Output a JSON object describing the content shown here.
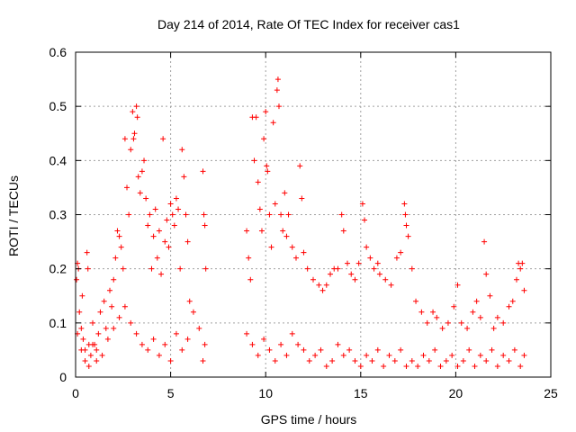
{
  "chart_data": {
    "type": "scatter",
    "title": "Day 214 of 2014, Rate Of TEC Index for receiver cas1",
    "xlabel": "GPS time / hours",
    "ylabel": "ROTI / TECUs",
    "xlim": [
      0,
      25
    ],
    "ylim": [
      0,
      0.6
    ],
    "x_ticks": [
      0,
      5,
      10,
      15,
      20,
      25
    ],
    "y_ticks": [
      0,
      0.1,
      0.2,
      0.3,
      0.4,
      0.5,
      0.6
    ],
    "x_tick_labels": [
      "0",
      "5",
      "10",
      "15",
      "20",
      "25"
    ],
    "y_tick_labels": [
      "0",
      "0.1",
      "0.2",
      "0.3",
      "0.4",
      "0.5",
      "0.6"
    ],
    "grid": true,
    "marker": "+",
    "color": "#ff0000",
    "series": [
      {
        "name": "ROTI",
        "points": [
          [
            0.05,
            0.18
          ],
          [
            0.1,
            0.21
          ],
          [
            0.15,
            0.2
          ],
          [
            0.2,
            0.12
          ],
          [
            0.3,
            0.09
          ],
          [
            0.35,
            0.15
          ],
          [
            0.4,
            0.07
          ],
          [
            0.5,
            0.05
          ],
          [
            0.6,
            0.23
          ],
          [
            0.65,
            0.2
          ],
          [
            0.7,
            0.06
          ],
          [
            0.8,
            0.04
          ],
          [
            0.9,
            0.1
          ],
          [
            1.0,
            0.06
          ],
          [
            1.1,
            0.03
          ],
          [
            1.2,
            0.08
          ],
          [
            1.3,
            0.12
          ],
          [
            1.5,
            0.14
          ],
          [
            1.6,
            0.09
          ],
          [
            1.8,
            0.16
          ],
          [
            1.9,
            0.13
          ],
          [
            2.0,
            0.18
          ],
          [
            2.1,
            0.22
          ],
          [
            2.2,
            0.27
          ],
          [
            2.3,
            0.26
          ],
          [
            2.4,
            0.24
          ],
          [
            2.5,
            0.2
          ],
          [
            2.6,
            0.44
          ],
          [
            2.7,
            0.35
          ],
          [
            2.8,
            0.3
          ],
          [
            2.9,
            0.42
          ],
          [
            3.0,
            0.49
          ],
          [
            3.05,
            0.44
          ],
          [
            3.1,
            0.45
          ],
          [
            3.2,
            0.5
          ],
          [
            3.25,
            0.48
          ],
          [
            3.3,
            0.37
          ],
          [
            3.4,
            0.34
          ],
          [
            3.5,
            0.38
          ],
          [
            3.6,
            0.4
          ],
          [
            3.7,
            0.33
          ],
          [
            3.8,
            0.28
          ],
          [
            3.9,
            0.3
          ],
          [
            4.0,
            0.2
          ],
          [
            4.1,
            0.26
          ],
          [
            4.2,
            0.31
          ],
          [
            4.3,
            0.22
          ],
          [
            4.4,
            0.27
          ],
          [
            4.5,
            0.19
          ],
          [
            4.6,
            0.44
          ],
          [
            4.7,
            0.25
          ],
          [
            4.8,
            0.29
          ],
          [
            4.9,
            0.24
          ],
          [
            5.0,
            0.32
          ],
          [
            5.1,
            0.3
          ],
          [
            5.2,
            0.28
          ],
          [
            5.3,
            0.33
          ],
          [
            5.4,
            0.31
          ],
          [
            5.5,
            0.2
          ],
          [
            5.6,
            0.42
          ],
          [
            5.7,
            0.37
          ],
          [
            5.8,
            0.3
          ],
          [
            5.9,
            0.25
          ],
          [
            6.0,
            0.14
          ],
          [
            6.2,
            0.12
          ],
          [
            6.5,
            0.09
          ],
          [
            6.7,
            0.38
          ],
          [
            6.75,
            0.3
          ],
          [
            6.8,
            0.28
          ],
          [
            6.85,
            0.2
          ],
          [
            9.0,
            0.27
          ],
          [
            9.1,
            0.22
          ],
          [
            9.2,
            0.18
          ],
          [
            9.3,
            0.48
          ],
          [
            9.4,
            0.4
          ],
          [
            9.5,
            0.48
          ],
          [
            9.6,
            0.36
          ],
          [
            9.7,
            0.31
          ],
          [
            9.8,
            0.27
          ],
          [
            9.9,
            0.44
          ],
          [
            10.0,
            0.49
          ],
          [
            10.05,
            0.39
          ],
          [
            10.1,
            0.38
          ],
          [
            10.2,
            0.3
          ],
          [
            10.3,
            0.24
          ],
          [
            10.4,
            0.47
          ],
          [
            10.5,
            0.32
          ],
          [
            10.6,
            0.53
          ],
          [
            10.65,
            0.55
          ],
          [
            10.7,
            0.5
          ],
          [
            10.8,
            0.3
          ],
          [
            10.9,
            0.27
          ],
          [
            11.0,
            0.34
          ],
          [
            11.1,
            0.26
          ],
          [
            11.2,
            0.3
          ],
          [
            11.4,
            0.24
          ],
          [
            11.6,
            0.22
          ],
          [
            11.8,
            0.39
          ],
          [
            11.9,
            0.33
          ],
          [
            12.0,
            0.23
          ],
          [
            12.2,
            0.2
          ],
          [
            12.5,
            0.18
          ],
          [
            12.8,
            0.17
          ],
          [
            13.0,
            0.16
          ],
          [
            13.2,
            0.17
          ],
          [
            13.4,
            0.19
          ],
          [
            13.6,
            0.2
          ],
          [
            13.8,
            0.2
          ],
          [
            14.0,
            0.3
          ],
          [
            14.1,
            0.27
          ],
          [
            14.3,
            0.21
          ],
          [
            14.5,
            0.19
          ],
          [
            14.7,
            0.18
          ],
          [
            14.9,
            0.21
          ],
          [
            15.1,
            0.32
          ],
          [
            15.2,
            0.29
          ],
          [
            15.3,
            0.24
          ],
          [
            15.5,
            0.22
          ],
          [
            15.7,
            0.2
          ],
          [
            15.9,
            0.21
          ],
          [
            16.0,
            0.19
          ],
          [
            16.3,
            0.18
          ],
          [
            16.6,
            0.17
          ],
          [
            16.9,
            0.22
          ],
          [
            17.1,
            0.23
          ],
          [
            17.3,
            0.32
          ],
          [
            17.35,
            0.3
          ],
          [
            17.4,
            0.28
          ],
          [
            17.5,
            0.26
          ],
          [
            17.7,
            0.2
          ],
          [
            17.9,
            0.14
          ],
          [
            18.2,
            0.12
          ],
          [
            18.5,
            0.1
          ],
          [
            18.8,
            0.12
          ],
          [
            19.0,
            0.11
          ],
          [
            19.3,
            0.09
          ],
          [
            19.6,
            0.1
          ],
          [
            19.9,
            0.13
          ],
          [
            20.1,
            0.17
          ],
          [
            20.3,
            0.1
          ],
          [
            20.6,
            0.09
          ],
          [
            20.9,
            0.12
          ],
          [
            21.1,
            0.14
          ],
          [
            21.3,
            0.11
          ],
          [
            21.5,
            0.25
          ],
          [
            21.6,
            0.19
          ],
          [
            21.8,
            0.15
          ],
          [
            22.0,
            0.09
          ],
          [
            22.2,
            0.11
          ],
          [
            22.5,
            0.1
          ],
          [
            22.8,
            0.13
          ],
          [
            23.0,
            0.14
          ],
          [
            23.2,
            0.18
          ],
          [
            23.3,
            0.21
          ],
          [
            23.4,
            0.2
          ],
          [
            23.5,
            0.21
          ],
          [
            23.6,
            0.16
          ],
          [
            0.1,
            0.08
          ],
          [
            0.3,
            0.05
          ],
          [
            0.5,
            0.03
          ],
          [
            0.7,
            0.02
          ],
          [
            0.9,
            0.06
          ],
          [
            1.1,
            0.05
          ],
          [
            1.4,
            0.04
          ],
          [
            1.7,
            0.07
          ],
          [
            2.0,
            0.09
          ],
          [
            2.3,
            0.11
          ],
          [
            2.6,
            0.13
          ],
          [
            2.9,
            0.1
          ],
          [
            3.2,
            0.08
          ],
          [
            3.5,
            0.06
          ],
          [
            3.8,
            0.05
          ],
          [
            4.1,
            0.07
          ],
          [
            4.4,
            0.04
          ],
          [
            4.7,
            0.06
          ],
          [
            5.0,
            0.03
          ],
          [
            5.3,
            0.08
          ],
          [
            5.6,
            0.05
          ],
          [
            5.9,
            0.07
          ],
          [
            6.7,
            0.03
          ],
          [
            6.8,
            0.06
          ],
          [
            9.0,
            0.08
          ],
          [
            9.3,
            0.06
          ],
          [
            9.6,
            0.04
          ],
          [
            9.9,
            0.07
          ],
          [
            10.2,
            0.05
          ],
          [
            10.5,
            0.03
          ],
          [
            10.8,
            0.06
          ],
          [
            11.1,
            0.04
          ],
          [
            11.4,
            0.08
          ],
          [
            11.7,
            0.06
          ],
          [
            12.0,
            0.05
          ],
          [
            12.3,
            0.03
          ],
          [
            12.6,
            0.04
          ],
          [
            12.9,
            0.05
          ],
          [
            13.2,
            0.02
          ],
          [
            13.5,
            0.03
          ],
          [
            13.8,
            0.06
          ],
          [
            14.1,
            0.04
          ],
          [
            14.4,
            0.05
          ],
          [
            14.7,
            0.03
          ],
          [
            15.0,
            0.02
          ],
          [
            15.3,
            0.04
          ],
          [
            15.6,
            0.03
          ],
          [
            15.9,
            0.05
          ],
          [
            16.2,
            0.02
          ],
          [
            16.5,
            0.04
          ],
          [
            16.8,
            0.03
          ],
          [
            17.1,
            0.05
          ],
          [
            17.4,
            0.02
          ],
          [
            17.7,
            0.03
          ],
          [
            18.0,
            0.02
          ],
          [
            18.3,
            0.04
          ],
          [
            18.6,
            0.03
          ],
          [
            18.9,
            0.05
          ],
          [
            19.2,
            0.02
          ],
          [
            19.5,
            0.03
          ],
          [
            19.8,
            0.04
          ],
          [
            20.1,
            0.02
          ],
          [
            20.4,
            0.03
          ],
          [
            20.7,
            0.05
          ],
          [
            21.0,
            0.02
          ],
          [
            21.3,
            0.04
          ],
          [
            21.6,
            0.03
          ],
          [
            21.9,
            0.05
          ],
          [
            22.2,
            0.02
          ],
          [
            22.5,
            0.04
          ],
          [
            22.8,
            0.03
          ],
          [
            23.1,
            0.05
          ],
          [
            23.4,
            0.02
          ],
          [
            23.6,
            0.04
          ]
        ]
      }
    ]
  }
}
